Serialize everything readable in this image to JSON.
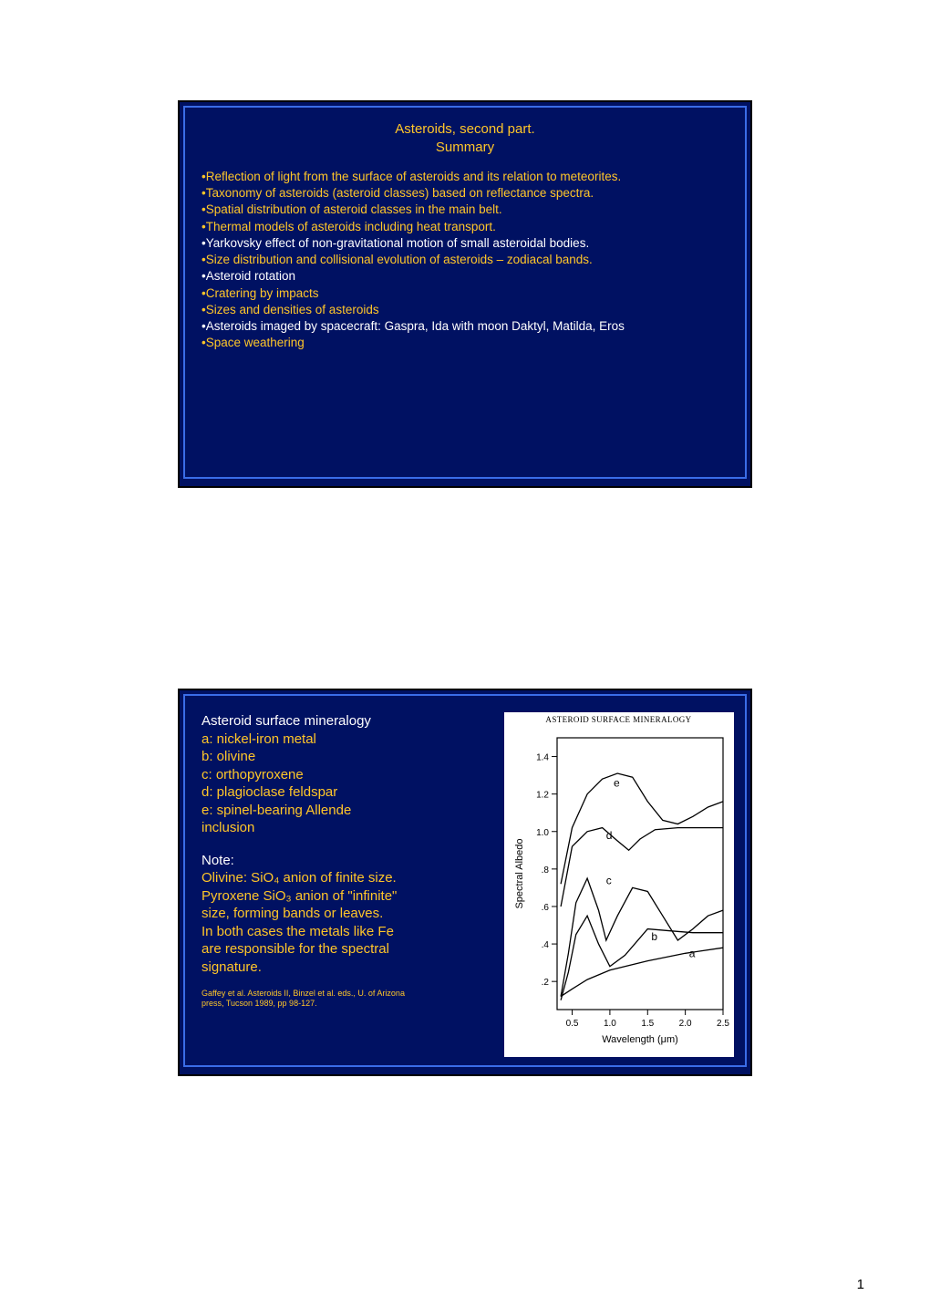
{
  "slide1": {
    "title1": "Asteroids, second part.",
    "title2": "Summary",
    "bullets": [
      {
        "text": "•Reflection of light from the surface of asteroids and its relation to meteorites.",
        "color": "yellow"
      },
      {
        "text": "•Taxonomy of asteroids (asteroid classes) based on reflectance spectra.",
        "color": "yellow"
      },
      {
        "text": "•Spatial distribution of asteroid classes in the main belt.",
        "color": "yellow"
      },
      {
        "text": "•Thermal models of asteroids including heat transport.",
        "color": "yellow"
      },
      {
        "text": "•Yarkovsky effect of non-gravitational motion of small asteroidal bodies.",
        "color": "white"
      },
      {
        "text": "•Size distribution and collisional evolution of asteroids – zodiacal bands.",
        "color": "yellow"
      },
      {
        "text": "•Asteroid rotation",
        "color": "white"
      },
      {
        "text": "•Cratering by impacts",
        "color": "yellow"
      },
      {
        "text": "•Sizes and densities of asteroids",
        "color": "yellow"
      },
      {
        "text": "•Asteroids imaged by spacecraft: Gaspra, Ida with moon Daktyl, Matilda, Eros",
        "color": "white"
      },
      {
        "text": "•Space weathering",
        "color": "yellow"
      }
    ]
  },
  "slide2": {
    "left": {
      "header": "Asteroid surface mineralogy",
      "items": [
        "a: nickel-iron metal",
        "b: olivine",
        "c: orthopyroxene",
        "d: plagioclase feldspar",
        "e: spinel-bearing Allende",
        "inclusion"
      ],
      "noteHeader": "Note:",
      "noteLines": [
        "Olivine: SiO₄ anion of finite size.",
        "Pyroxene SiO₃ anion of \"infinite\"",
        "size, forming bands or leaves.",
        "In both cases the metals like Fe",
        "are responsible for the spectral",
        "signature."
      ],
      "citation1": "Gaffey et al. Asteroids II, Binzel et al. eds., U. of Arizona",
      "citation2": "press, Tucson 1989, pp 98-127."
    },
    "chart": {
      "title": "ASTEROID SURFACE MINERALOGY",
      "xlabel": "Wavelength (μm)",
      "ylabel": "Spectral Albedo",
      "xticks": [
        "0.5",
        "1.0",
        "1.5",
        "2.0",
        "2.5"
      ],
      "yticks": [
        ".2",
        ".4",
        ".6",
        ".8",
        "1.0",
        "1.2",
        "1.4"
      ],
      "xlim": [
        0.3,
        2.5
      ],
      "ylim": [
        0.05,
        1.5
      ],
      "curves": {
        "a": [
          [
            0.35,
            0.12
          ],
          [
            0.5,
            0.16
          ],
          [
            0.7,
            0.21
          ],
          [
            1.0,
            0.26
          ],
          [
            1.5,
            0.31
          ],
          [
            2.0,
            0.35
          ],
          [
            2.5,
            0.38
          ]
        ],
        "b": [
          [
            0.35,
            0.1
          ],
          [
            0.45,
            0.25
          ],
          [
            0.55,
            0.45
          ],
          [
            0.7,
            0.55
          ],
          [
            0.85,
            0.4
          ],
          [
            1.0,
            0.28
          ],
          [
            1.2,
            0.34
          ],
          [
            1.5,
            0.48
          ],
          [
            1.8,
            0.47
          ],
          [
            2.1,
            0.46
          ],
          [
            2.5,
            0.46
          ]
        ],
        "c": [
          [
            0.35,
            0.12
          ],
          [
            0.45,
            0.35
          ],
          [
            0.55,
            0.62
          ],
          [
            0.7,
            0.75
          ],
          [
            0.85,
            0.58
          ],
          [
            0.95,
            0.42
          ],
          [
            1.1,
            0.55
          ],
          [
            1.3,
            0.7
          ],
          [
            1.5,
            0.68
          ],
          [
            1.7,
            0.55
          ],
          [
            1.9,
            0.42
          ],
          [
            2.1,
            0.48
          ],
          [
            2.3,
            0.55
          ],
          [
            2.5,
            0.58
          ]
        ],
        "d": [
          [
            0.35,
            0.6
          ],
          [
            0.5,
            0.92
          ],
          [
            0.7,
            1.0
          ],
          [
            0.9,
            1.02
          ],
          [
            1.1,
            0.95
          ],
          [
            1.25,
            0.9
          ],
          [
            1.4,
            0.96
          ],
          [
            1.6,
            1.01
          ],
          [
            1.9,
            1.02
          ],
          [
            2.2,
            1.02
          ],
          [
            2.5,
            1.02
          ]
        ],
        "e": [
          [
            0.35,
            0.72
          ],
          [
            0.5,
            1.02
          ],
          [
            0.7,
            1.2
          ],
          [
            0.9,
            1.28
          ],
          [
            1.1,
            1.31
          ],
          [
            1.3,
            1.29
          ],
          [
            1.5,
            1.16
          ],
          [
            1.7,
            1.06
          ],
          [
            1.9,
            1.04
          ],
          [
            2.1,
            1.08
          ],
          [
            2.3,
            1.13
          ],
          [
            2.5,
            1.16
          ]
        ]
      },
      "labels": {
        "a": [
          2.05,
          0.33
        ],
        "b": [
          1.55,
          0.42
        ],
        "c": [
          0.95,
          0.72
        ],
        "d": [
          0.95,
          0.96
        ],
        "e": [
          1.05,
          1.24
        ]
      },
      "colors": {
        "line": "#000000",
        "background": "#ffffff",
        "text": "#000000"
      }
    }
  },
  "pageNumber": "1"
}
